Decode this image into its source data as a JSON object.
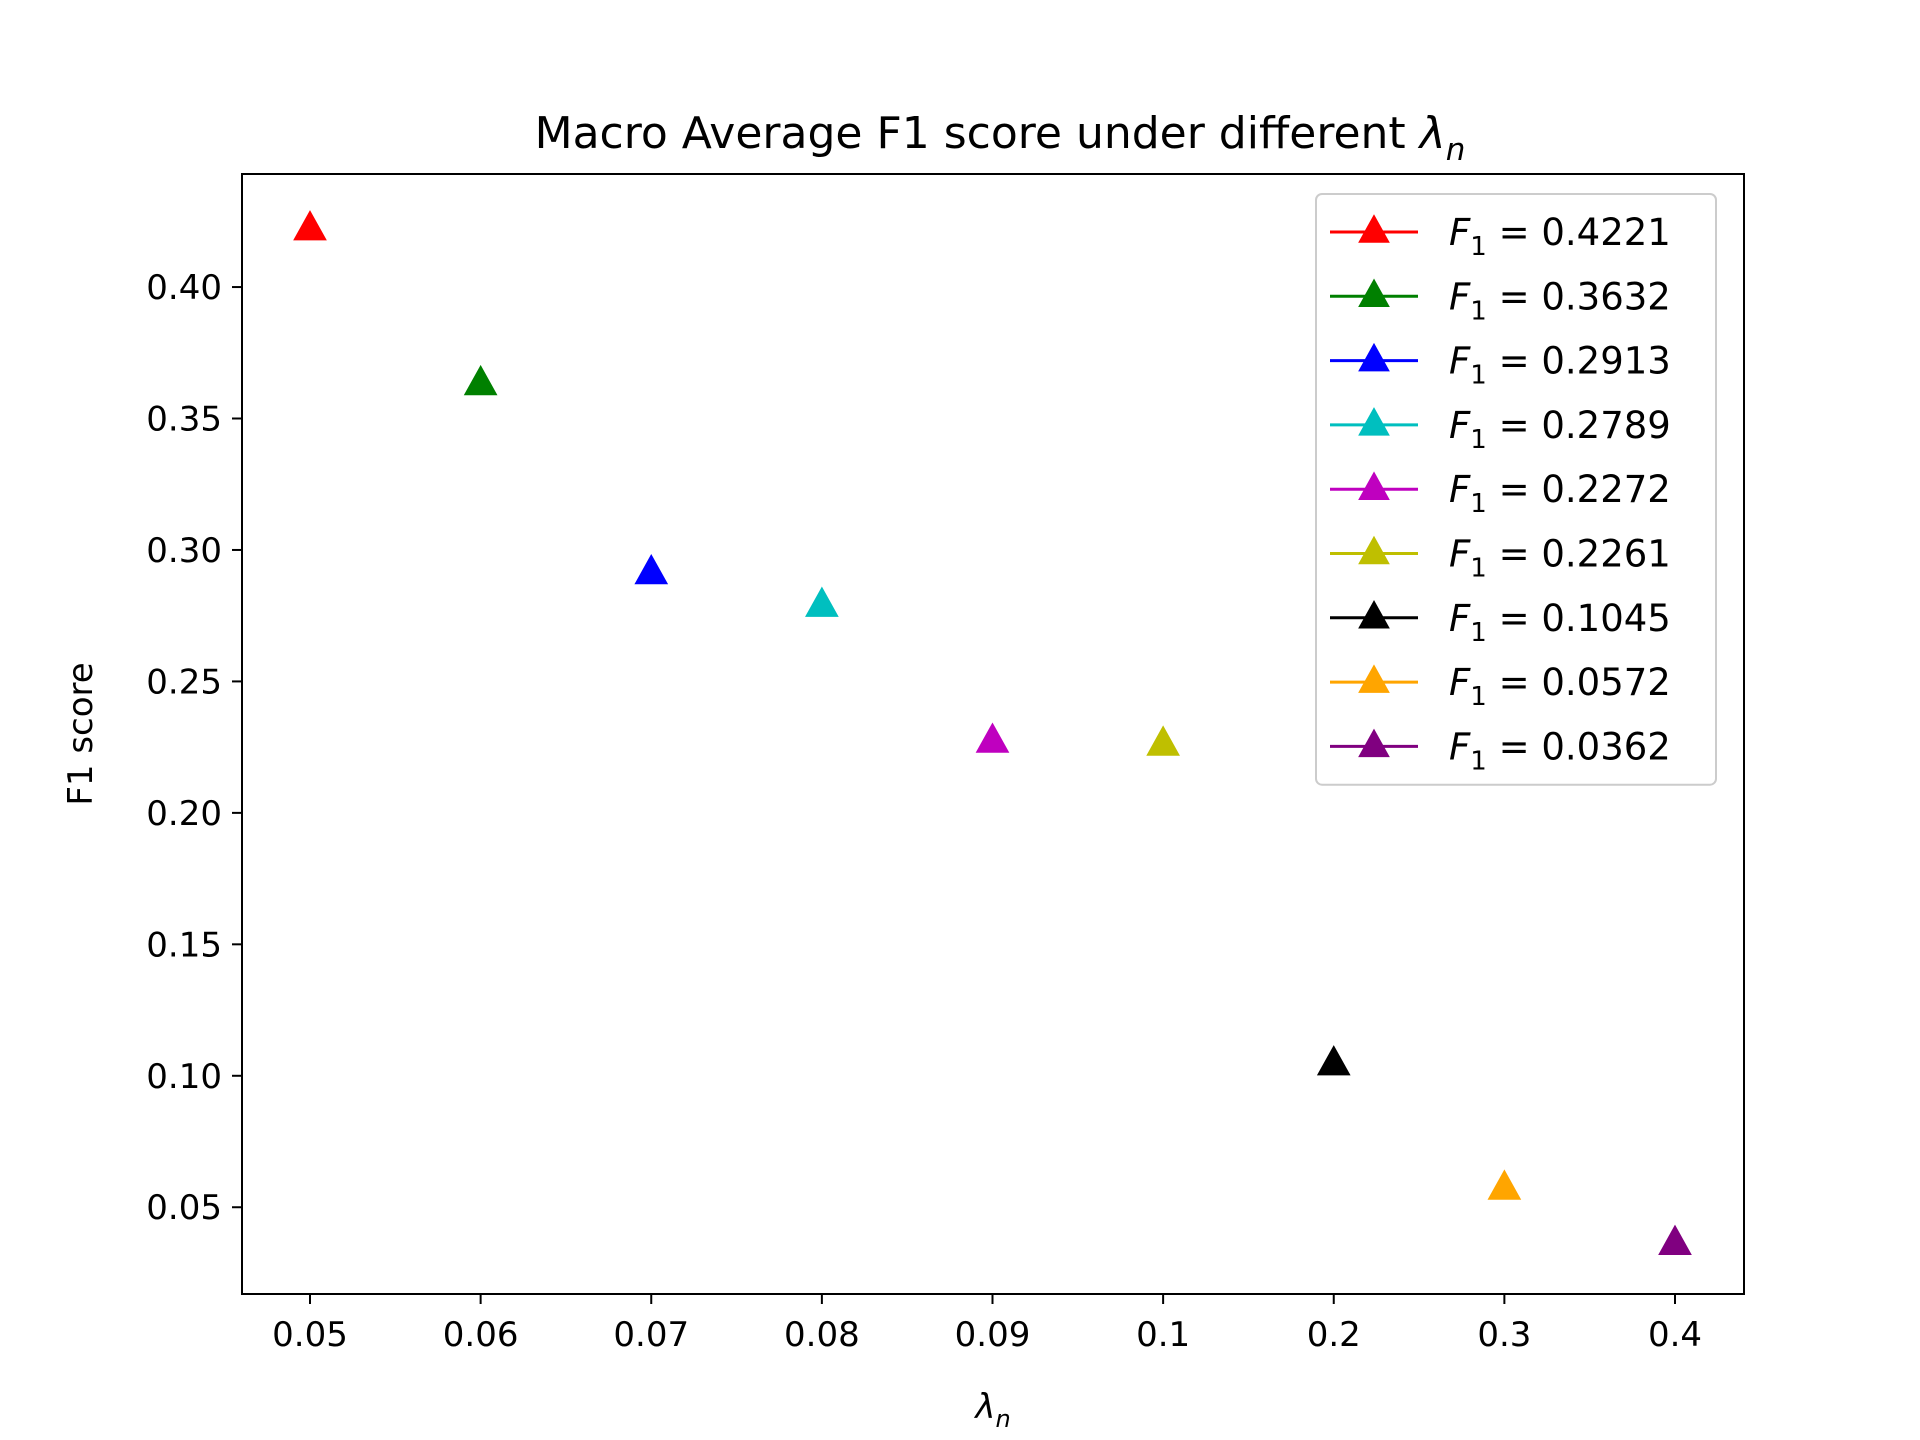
{
  "chart_data": {
    "type": "scatter",
    "title": {
      "prefix": "Macro Average F1 score under different ",
      "symbol": "λ",
      "subscript": "n"
    },
    "xlabel": {
      "symbol": "λ",
      "subscript": "n"
    },
    "ylabel": "F1 score",
    "x_categories": [
      "0.05",
      "0.06",
      "0.07",
      "0.08",
      "0.09",
      "0.1",
      "0.2",
      "0.3",
      "0.4"
    ],
    "ylim": [
      0.017,
      0.443
    ],
    "yticks": [
      "0.05",
      "0.10",
      "0.15",
      "0.20",
      "0.25",
      "0.30",
      "0.35",
      "0.40"
    ],
    "marker": "triangle-up",
    "grid": false,
    "legend_position": "top-right",
    "legend_symbol": "F",
    "legend_subscript": "1",
    "series": [
      {
        "x": "0.05",
        "y": 0.4221,
        "color": "#ff0000",
        "label_value": "0.4221"
      },
      {
        "x": "0.06",
        "y": 0.3632,
        "color": "#008000",
        "label_value": "0.3632"
      },
      {
        "x": "0.07",
        "y": 0.2913,
        "color": "#0000ff",
        "label_value": "0.2913"
      },
      {
        "x": "0.08",
        "y": 0.2789,
        "color": "#00bfbf",
        "label_value": "0.2789"
      },
      {
        "x": "0.09",
        "y": 0.2272,
        "color": "#bf00bf",
        "label_value": "0.2272"
      },
      {
        "x": "0.1",
        "y": 0.2261,
        "color": "#bfbf00",
        "label_value": "0.2261"
      },
      {
        "x": "0.2",
        "y": 0.1045,
        "color": "#000000",
        "label_value": "0.1045"
      },
      {
        "x": "0.3",
        "y": 0.0572,
        "color": "#ffa500",
        "label_value": "0.0572"
      },
      {
        "x": "0.4",
        "y": 0.0362,
        "color": "#800080",
        "label_value": "0.0362"
      }
    ]
  }
}
